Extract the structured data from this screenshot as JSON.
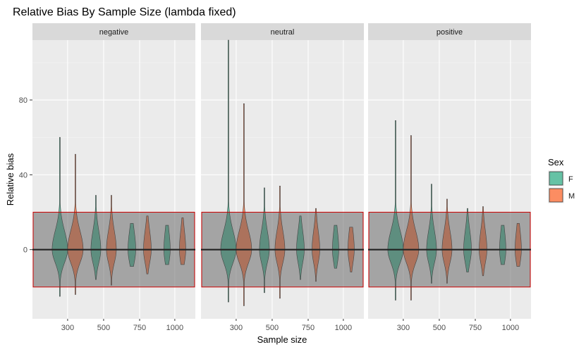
{
  "chart_data": {
    "type": "violin",
    "title": "Relative Bias By Sample Size (lambda fixed)",
    "xlabel": "Sample size",
    "ylabel": "Relative bias",
    "categories": [
      "300",
      "500",
      "750",
      "1000"
    ],
    "yticks": [
      "0",
      "40",
      "80"
    ],
    "ylim": [
      -37,
      112
    ],
    "band": [
      -20,
      20
    ],
    "reference_line": 0,
    "legend": {
      "title": "Sex",
      "position": "right",
      "entries": [
        {
          "label": "F",
          "color": "#66c2a5"
        },
        {
          "label": "M",
          "color": "#fc8d62"
        }
      ]
    },
    "panels": [
      {
        "name": "negative",
        "series": [
          {
            "name": "F",
            "min": [
              -25,
              -16,
              -9,
              -8
            ],
            "max": [
              60,
              29,
              14,
              13
            ],
            "spread": [
              11,
              7,
              5.5,
              4.5
            ]
          },
          {
            "name": "M",
            "min": [
              -24,
              -19,
              -13,
              -8
            ],
            "max": [
              51,
              29,
              18,
              17
            ],
            "spread": [
              11,
              7,
              5.5,
              4.5
            ]
          }
        ]
      },
      {
        "name": "neutral",
        "series": [
          {
            "name": "F",
            "min": [
              -28,
              -23,
              -16,
              -10
            ],
            "max": [
              112,
              33,
              18,
              13
            ],
            "spread": [
              11,
              7,
              5.5,
              4.5
            ]
          },
          {
            "name": "M",
            "min": [
              -30,
              -26,
              -17,
              -12
            ],
            "max": [
              78,
              34,
              22,
              12
            ],
            "spread": [
              11,
              7,
              5.5,
              4.5
            ]
          }
        ]
      },
      {
        "name": "positive",
        "series": [
          {
            "name": "F",
            "min": [
              -27,
              -18,
              -12,
              -8
            ],
            "max": [
              69,
              35,
              22,
              13
            ],
            "spread": [
              11,
              7,
              5.5,
              4.5
            ]
          },
          {
            "name": "M",
            "min": [
              -27,
              -18,
              -14,
              -9
            ],
            "max": [
              61,
              27,
              23,
              14
            ],
            "spread": [
              11,
              7,
              5.5,
              4.5
            ]
          }
        ]
      }
    ]
  }
}
